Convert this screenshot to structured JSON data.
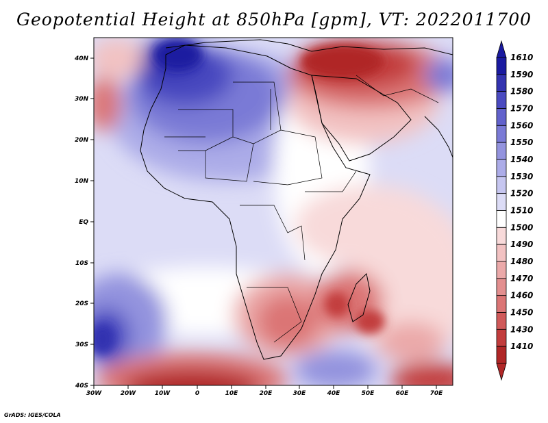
{
  "title": "Geopotential Height at 850hPa [gpm], VT: 2022011700",
  "credit": "GrADS: IGES/COLA",
  "lon_labels": [
    "30W",
    "20W",
    "10W",
    "0",
    "10E",
    "20E",
    "30E",
    "40E",
    "50E",
    "60E",
    "70E"
  ],
  "lat_labels": [
    "40N",
    "30N",
    "20N",
    "10N",
    "EQ",
    "10S",
    "20S",
    "30S",
    "40S"
  ],
  "colorbar": {
    "values": [
      "1610",
      "1590",
      "1580",
      "1570",
      "1560",
      "1550",
      "1540",
      "1530",
      "1520",
      "1510",
      "1500",
      "1490",
      "1480",
      "1470",
      "1460",
      "1450",
      "1430",
      "1410"
    ],
    "colors": [
      "#1a1aa0",
      "#3333b0",
      "#4a4ac0",
      "#6262cc",
      "#7a7ad6",
      "#9393de",
      "#acace8",
      "#c6c6f0",
      "#dcdcf6",
      "#ffffff",
      "#f8dada",
      "#f2c2c2",
      "#eba9a9",
      "#e38f8f",
      "#db7575",
      "#d05959",
      "#c23c3c",
      "#b02626"
    ]
  }
}
